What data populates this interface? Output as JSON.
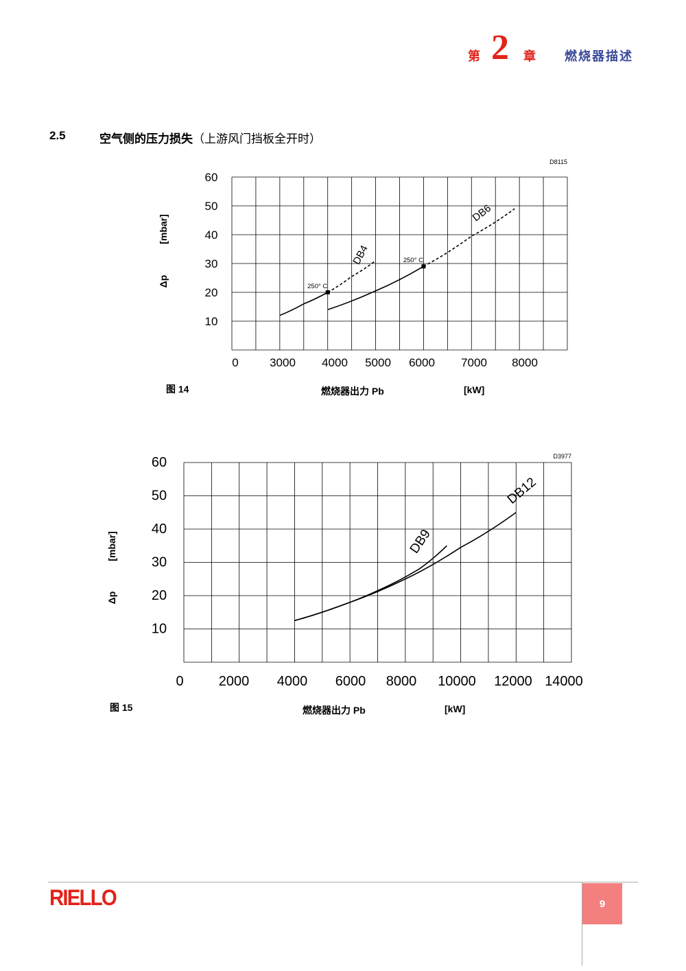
{
  "header": {
    "chapter_prefix": "第",
    "chapter_number": "2",
    "chapter_suffix": "章",
    "chapter_title": "燃烧器描述"
  },
  "section": {
    "number": "2.5",
    "title": "空气侧的压力损失",
    "subtitle": "（上游风门挡板全开时）"
  },
  "chart_data": [
    {
      "type": "line",
      "code": "D8115",
      "figure_label": "图 14",
      "xlabel": "燃烧器出力 Pb",
      "xunit": "[kW]",
      "ylabel": "Δp",
      "yunit": "[mbar]",
      "xlim": [
        2000,
        9000
      ],
      "ylim": [
        0,
        60
      ],
      "x_ticks": [
        "0",
        "3000",
        "4000",
        "5000",
        "6000",
        "7000",
        "8000"
      ],
      "y_ticks": [
        "60",
        "50",
        "40",
        "30",
        "20",
        "10"
      ],
      "grid": true,
      "series": [
        {
          "name": "DB4",
          "style": "solid",
          "x": [
            3000,
            3500,
            4000
          ],
          "y": [
            12,
            16,
            20
          ]
        },
        {
          "name": "DB4",
          "style": "dashed",
          "x": [
            4000,
            4500,
            5000
          ],
          "y": [
            20,
            25.5,
            31
          ]
        },
        {
          "name": "DB6",
          "style": "solid",
          "x": [
            4000,
            5000,
            6000
          ],
          "y": [
            14,
            20.5,
            29
          ]
        },
        {
          "name": "DB6",
          "style": "dashed",
          "x": [
            6000,
            7000,
            7900
          ],
          "y": [
            29,
            39.5,
            49
          ]
        }
      ],
      "annotations": [
        {
          "text": "250° C",
          "x": 4000,
          "y": 20
        },
        {
          "text": "250° C",
          "x": 6000,
          "y": 29
        }
      ]
    },
    {
      "type": "line",
      "code": "D3977",
      "figure_label": "图 15",
      "xlabel": "燃烧器出力 Pb",
      "xunit": "[kW]",
      "ylabel": "Δp",
      "yunit": "[mbar]",
      "xlim": [
        0,
        14000
      ],
      "ylim": [
        0,
        60
      ],
      "x_ticks": [
        "0",
        "2000",
        "4000",
        "6000",
        "8000",
        "10000",
        "12000",
        "14000"
      ],
      "y_ticks": [
        "60",
        "50",
        "40",
        "30",
        "20",
        "10"
      ],
      "grid": true,
      "series": [
        {
          "name": "DB9",
          "style": "solid",
          "x": [
            4000,
            5500,
            7000,
            8500,
            9500
          ],
          "y": [
            12.5,
            16.5,
            21.5,
            28,
            35
          ]
        },
        {
          "name": "DB12",
          "style": "solid",
          "x": [
            4000,
            6000,
            8000,
            10000,
            12000
          ],
          "y": [
            12.5,
            18,
            25,
            34.5,
            45
          ]
        }
      ]
    }
  ],
  "footer": {
    "logo_text": "RIELLO",
    "page_number": "9",
    "colors": {
      "brand_red": "#e2231a",
      "page_box": "#f47f7f",
      "title_blue": "#3b4a9a"
    }
  }
}
